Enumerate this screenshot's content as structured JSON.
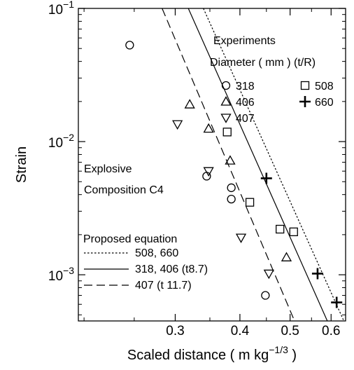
{
  "chart_data": {
    "type": "scatter",
    "xlabel": "Scaled distance ( m kg",
    "xlabel_exp": "−1/3",
    "xlabel_close": " )",
    "ylabel": "Strain",
    "x_scale": "log",
    "y_scale": "log",
    "xlim": [
      0.195,
      0.64
    ],
    "ylim": [
      0.00045,
      0.1
    ],
    "x_ticks": [
      {
        "value": 0.3,
        "label": "0.3"
      },
      {
        "value": 0.4,
        "label": "0.4"
      },
      {
        "value": 0.5,
        "label": "0.5"
      },
      {
        "value": 0.6,
        "label": "0.6"
      }
    ],
    "y_ticks": [
      {
        "value": 0.001,
        "base": "10",
        "exp": "−3"
      },
      {
        "value": 0.01,
        "base": "10",
        "exp": "−2"
      },
      {
        "value": 0.1,
        "base": "10",
        "exp": "−1"
      }
    ],
    "grid": false,
    "annotations": {
      "experiments_title": "Experiments",
      "diameter_header": "Diameter ( mm ) (t/R)",
      "explosive_line1": "Explosive",
      "explosive_line2": "Composition C4",
      "equation_title": "Proposed equation"
    },
    "series": [
      {
        "name": "318",
        "marker": "circle",
        "points": [
          [
            0.245,
            0.053
          ],
          [
            0.345,
            0.0055
          ],
          [
            0.385,
            0.0045
          ],
          [
            0.385,
            0.0037
          ],
          [
            0.448,
            0.0007
          ]
        ]
      },
      {
        "name": "406",
        "marker": "triangle-up",
        "points": [
          [
            0.32,
            0.019
          ],
          [
            0.348,
            0.0125
          ],
          [
            0.383,
            0.0072
          ],
          [
            0.492,
            0.00135
          ]
        ]
      },
      {
        "name": "407",
        "marker": "triangle-down",
        "points": [
          [
            0.303,
            0.0135
          ],
          [
            0.348,
            0.006
          ],
          [
            0.402,
            0.0019
          ],
          [
            0.455,
            0.00102
          ]
        ]
      },
      {
        "name": "508",
        "marker": "square",
        "points": [
          [
            0.378,
            0.0118
          ],
          [
            0.418,
            0.0035
          ],
          [
            0.478,
            0.0022
          ],
          [
            0.508,
            0.0021
          ]
        ]
      },
      {
        "name": "660",
        "marker": "plus",
        "points": [
          [
            0.45,
            0.0053
          ],
          [
            0.565,
            0.00102
          ],
          [
            0.615,
            0.00062
          ]
        ]
      }
    ],
    "lines": [
      {
        "name": "508, 660",
        "style": "dotted",
        "points": [
          [
            0.34,
            0.1
          ],
          [
            0.635,
            0.00045
          ]
        ]
      },
      {
        "name": "318, 406 (t8.7)",
        "style": "solid",
        "points": [
          [
            0.318,
            0.1
          ],
          [
            0.59,
            0.00045
          ]
        ]
      },
      {
        "name": "407 (t 11.7)",
        "style": "dashed",
        "points": [
          [
            0.283,
            0.1
          ],
          [
            0.51,
            0.00045
          ]
        ]
      }
    ]
  }
}
